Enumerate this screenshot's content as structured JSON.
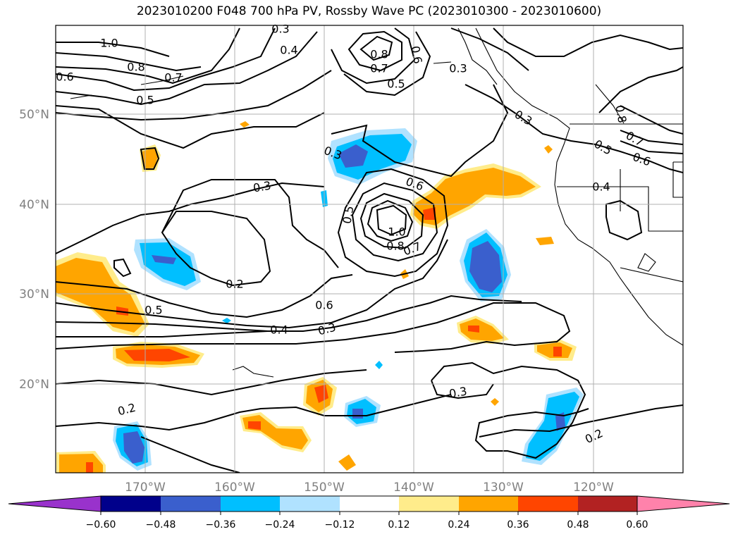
{
  "title": "2023010200 F048 700 hPa PV, Rossby Wave PC (2023010300 - 2023010600)",
  "lon_ticks": [
    "170°W",
    "160°W",
    "150°W",
    "140°W",
    "130°W",
    "120°W"
  ],
  "lat_ticks": [
    "50°N",
    "40°N",
    "30°N",
    "20°N"
  ],
  "contour_labels": [
    "1.0",
    "0.8",
    "0.7",
    "0.6",
    "0.5",
    "0.3",
    "0.8",
    "0.7",
    "0.6",
    "0.5",
    "0.4",
    "0.3",
    "0.8",
    "0.7",
    "0.6",
    "0.5",
    "0.4",
    "0.3",
    "0.3",
    "0.6",
    "1.0",
    "0.8",
    "0.7",
    "0.5",
    "0.2",
    "0.5",
    "0.6",
    "0.4",
    "0.3",
    "0.3",
    "0.2",
    "0.3",
    "0.2"
  ],
  "colorbar": {
    "ticks": [
      "−0.60",
      "−0.48",
      "−0.36",
      "−0.24",
      "−0.12",
      "0.12",
      "0.24",
      "0.36",
      "0.48",
      "0.60"
    ],
    "colors": [
      "#9932cc",
      "#00008b",
      "#3a5fcd",
      "#00bfff",
      "#b0e2ff",
      "#ffffff",
      "#ffec8b",
      "#ffa500",
      "#ff4500",
      "#b22222",
      "#ff82ab"
    ]
  },
  "colors": {
    "pos1": "#ffec8b",
    "pos2": "#ffa500",
    "pos3": "#ff4500",
    "neg1": "#b0e2ff",
    "neg2": "#00bfff",
    "neg3": "#3a5fcd"
  }
}
